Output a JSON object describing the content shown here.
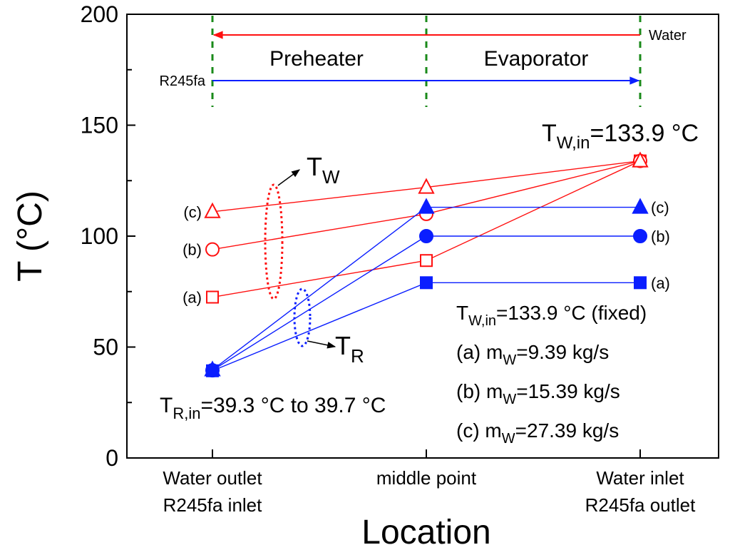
{
  "chart_data": {
    "type": "line",
    "xlabel": "Location",
    "ylabel": "T (°C)",
    "ylim": [
      0,
      200
    ],
    "yticks": [
      0,
      50,
      100,
      150,
      200
    ],
    "categories": [
      [
        "Water outlet",
        "R245fa inlet"
      ],
      [
        "middle point"
      ],
      [
        "Water inlet",
        "R245fa outlet"
      ]
    ],
    "water_series": [
      {
        "label": "(a)",
        "marker": "square",
        "values": [
          72.5,
          89,
          133.9
        ]
      },
      {
        "label": "(b)",
        "marker": "circle",
        "values": [
          94,
          110,
          133.9
        ]
      },
      {
        "label": "(c)",
        "marker": "triangle",
        "values": [
          111,
          122,
          133.9
        ]
      }
    ],
    "refrigerant_series": [
      {
        "label": "(a)",
        "marker": "square",
        "values": [
          39.3,
          79,
          79
        ]
      },
      {
        "label": "(b)",
        "marker": "circle",
        "values": [
          39.5,
          100,
          100
        ]
      },
      {
        "label": "(c)",
        "marker": "triangle",
        "values": [
          39.7,
          113,
          113
        ]
      }
    ],
    "colors": {
      "water": "#ff1010",
      "refrigerant": "#0a1eff",
      "divider": "#1a8a1a",
      "axis": "#000000"
    },
    "top_annotations": {
      "water": "Water",
      "refrigerant": "R245fa",
      "preheater": "Preheater",
      "evaporator": "Evaporator"
    },
    "annotations": {
      "tw_in_top": {
        "base": "T",
        "sub": "W,in",
        "rest": "=133.9 °C"
      },
      "tw_label": {
        "base": "T",
        "sub": "W"
      },
      "tr_label": {
        "base": "T",
        "sub": "R"
      },
      "tr_in": {
        "base": "T",
        "sub": "R,in",
        "rest": "=39.3 °C to 39.7 °C"
      },
      "legend": [
        {
          "base": "T",
          "sub": "W,in",
          "rest": "=133.9 °C (fixed)"
        },
        {
          "pre": "(a) m",
          "sub": "W",
          "rest": "=9.39 kg/s"
        },
        {
          "pre": "(b) m",
          "sub": "W",
          "rest": "=15.39 kg/s"
        },
        {
          "pre": "(c) m",
          "sub": "W",
          "rest": "=27.39 kg/s"
        }
      ]
    }
  }
}
